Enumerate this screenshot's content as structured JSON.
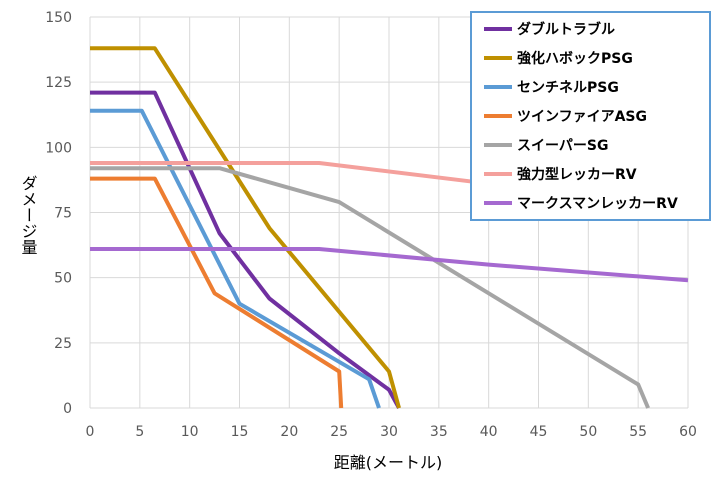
{
  "chart_data": {
    "type": "line",
    "xlabel": "距離(メートル)",
    "ylabel": "ダメージ量",
    "xlim": [
      0,
      60
    ],
    "ylim": [
      0,
      150
    ],
    "xticks": [
      0,
      5,
      10,
      15,
      20,
      25,
      30,
      35,
      40,
      45,
      50,
      55,
      60
    ],
    "yticks": [
      0,
      25,
      50,
      75,
      100,
      125,
      150
    ],
    "grid": true,
    "legend_position": "top-right",
    "series": [
      {
        "name": "ダブルトラブル",
        "color": "#7030a0",
        "points": [
          [
            0,
            121
          ],
          [
            6.5,
            121
          ],
          [
            13,
            67
          ],
          [
            18,
            42
          ],
          [
            25,
            21
          ],
          [
            30,
            7
          ],
          [
            31,
            0
          ]
        ]
      },
      {
        "name": "強化ハボックPSG",
        "color": "#bf9000",
        "points": [
          [
            0,
            138
          ],
          [
            6.5,
            138
          ],
          [
            18,
            69
          ],
          [
            30,
            14
          ],
          [
            31,
            0
          ]
        ]
      },
      {
        "name": "センチネルPSG",
        "color": "#5b9bd5",
        "points": [
          [
            0,
            114
          ],
          [
            5.2,
            114
          ],
          [
            15,
            40
          ],
          [
            28,
            11
          ],
          [
            29,
            0
          ]
        ]
      },
      {
        "name": "ツインファイアASG",
        "color": "#ed7d31",
        "points": [
          [
            0,
            88
          ],
          [
            6.5,
            88
          ],
          [
            12.5,
            44
          ],
          [
            25,
            14
          ],
          [
            25.2,
            0
          ]
        ]
      },
      {
        "name": "スイーパーSG",
        "color": "#a5a5a5",
        "points": [
          [
            0,
            92
          ],
          [
            13,
            92
          ],
          [
            25,
            79
          ],
          [
            55,
            9
          ],
          [
            56,
            0
          ]
        ]
      },
      {
        "name": "強力型レッカーRV",
        "color": "#f4a09c",
        "points": [
          [
            0,
            94
          ],
          [
            23,
            94
          ],
          [
            38,
            87
          ],
          [
            40,
            86
          ]
        ]
      },
      {
        "name": "マークスマンレッカーRV",
        "color": "#a569d0",
        "points": [
          [
            0,
            61
          ],
          [
            23,
            61
          ],
          [
            40,
            55
          ],
          [
            60,
            49
          ]
        ]
      }
    ]
  }
}
